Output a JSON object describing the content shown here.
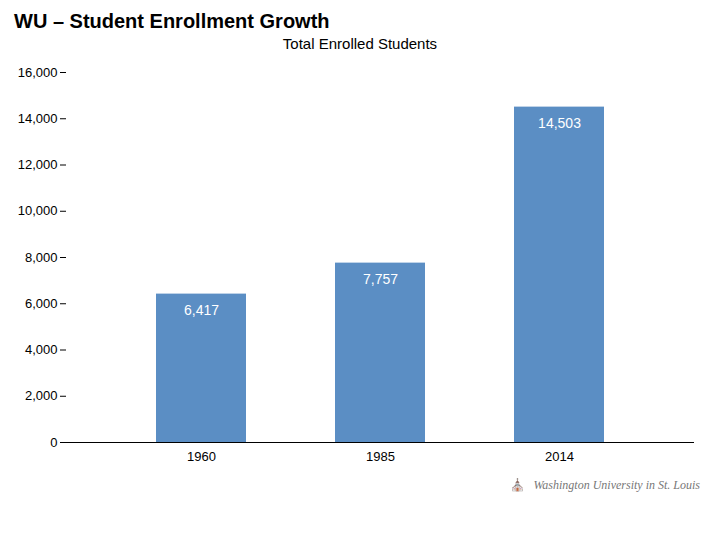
{
  "chart_data": {
    "type": "bar",
    "title": "WU – Student Enrollment Growth",
    "subtitle": "Total Enrolled Students",
    "categories": [
      "1960",
      "1985",
      "2014"
    ],
    "values": [
      6417,
      7757,
      14503
    ],
    "value_labels": [
      "6,417",
      "7,757",
      "14,503"
    ],
    "data_labels": true,
    "color": "#5B8EC4",
    "ylim": [
      0,
      16000
    ],
    "yticks": [
      0,
      {
        "value": 2000,
        "label": "2,000"
      },
      {
        "value": 4000,
        "label": "4,000"
      },
      {
        "value": 6000,
        "label": "6,000"
      },
      {
        "value": 8000,
        "label": "8,000"
      },
      {
        "value": 10000,
        "label": "10,000"
      },
      {
        "value": 12000,
        "label": "12,000"
      },
      {
        "value": 14000,
        "label": "14,000"
      },
      {
        "value": 16000,
        "label": "16,000"
      }
    ],
    "grid": false,
    "annotations": [
      "⛪",
      "Washington University in St. Louis"
    ]
  }
}
